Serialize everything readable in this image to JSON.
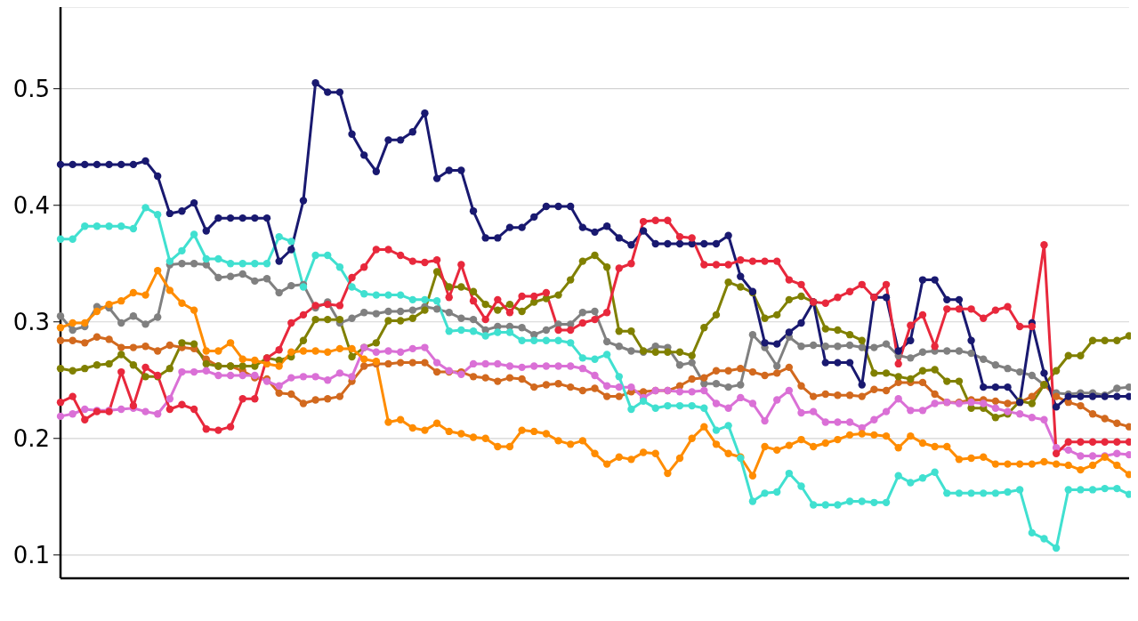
{
  "chart_data": {
    "type": "line",
    "marker": "circle",
    "line_style": "solid",
    "grid": "y",
    "legend": false,
    "categories": [
      null,
      null,
      null,
      null,
      null,
      null,
      null,
      null,
      null,
      null,
      null,
      null,
      null,
      null,
      null,
      null,
      null,
      null,
      null,
      null,
      null,
      null,
      null,
      null,
      null,
      null,
      null,
      null,
      null,
      null,
      null,
      null,
      null,
      null,
      null,
      null,
      null,
      null,
      null,
      null,
      null,
      null,
      null,
      null,
      null,
      null,
      null,
      null,
      null,
      null,
      null,
      null,
      null,
      null,
      null,
      null,
      null,
      null,
      null,
      null,
      null,
      null,
      null,
      null,
      null,
      null,
      null,
      null,
      null,
      null,
      null,
      null,
      null,
      null,
      null,
      null,
      null,
      null,
      null,
      null,
      null,
      null,
      null,
      null,
      null,
      null,
      null,
      null,
      null
    ],
    "ylim": [
      0.08,
      0.57
    ],
    "yticks": [
      0.1,
      0.2,
      0.3,
      0.4,
      0.5
    ],
    "series": [
      {
        "color": "#808080",
        "values": [
          0.305,
          0.293,
          0.296,
          0.313,
          0.312,
          0.299,
          0.305,
          0.298,
          0.304,
          0.349,
          0.35,
          0.35,
          0.349,
          0.338,
          0.339,
          0.341,
          0.335,
          0.337,
          0.325,
          0.331,
          0.332,
          0.312,
          0.317,
          0.299,
          0.303,
          0.308,
          0.307,
          0.309,
          0.309,
          0.31,
          0.313,
          0.311,
          0.308,
          0.303,
          0.302,
          0.293,
          0.296,
          0.296,
          0.295,
          0.289,
          0.293,
          0.298,
          0.298,
          0.308,
          0.309,
          0.283,
          0.279,
          0.275,
          0.274,
          0.279,
          0.278,
          0.263,
          0.265,
          0.247,
          0.247,
          0.244,
          0.246,
          0.289,
          0.278,
          0.262,
          0.287,
          0.279,
          0.28,
          0.279,
          0.279,
          0.28,
          0.278,
          0.278,
          0.281,
          0.271,
          0.269,
          0.274,
          0.275,
          0.275,
          0.275,
          0.273,
          0.268,
          0.263,
          0.26,
          0.257,
          0.254,
          0.246,
          0.239,
          0.238,
          0.239,
          0.239,
          0.237,
          0.243,
          0.244
        ]
      },
      {
        "color": "#d2691e",
        "values": [
          0.284,
          0.284,
          0.282,
          0.287,
          0.285,
          0.278,
          0.278,
          0.279,
          0.275,
          0.28,
          0.278,
          0.277,
          0.268,
          0.262,
          0.262,
          0.258,
          0.252,
          0.251,
          0.239,
          0.238,
          0.23,
          0.233,
          0.234,
          0.236,
          0.249,
          0.262,
          0.264,
          0.264,
          0.265,
          0.265,
          0.265,
          0.257,
          0.257,
          0.257,
          0.253,
          0.252,
          0.249,
          0.252,
          0.251,
          0.244,
          0.246,
          0.247,
          0.244,
          0.241,
          0.243,
          0.236,
          0.236,
          0.24,
          0.24,
          0.241,
          0.241,
          0.245,
          0.251,
          0.252,
          0.258,
          0.258,
          0.26,
          0.257,
          0.254,
          0.256,
          0.261,
          0.245,
          0.236,
          0.238,
          0.237,
          0.237,
          0.236,
          0.242,
          0.241,
          0.248,
          0.248,
          0.248,
          0.238,
          0.231,
          0.231,
          0.233,
          0.233,
          0.232,
          0.23,
          0.231,
          0.236,
          0.246,
          0.236,
          0.231,
          0.228,
          0.221,
          0.217,
          0.213,
          0.21
        ]
      },
      {
        "color": "#808000",
        "values": [
          0.26,
          0.258,
          0.26,
          0.263,
          0.264,
          0.272,
          0.263,
          0.253,
          0.253,
          0.26,
          0.282,
          0.281,
          0.264,
          0.262,
          0.262,
          0.262,
          0.262,
          0.269,
          0.267,
          0.27,
          0.284,
          0.302,
          0.302,
          0.302,
          0.27,
          0.278,
          0.282,
          0.301,
          0.301,
          0.303,
          0.31,
          0.343,
          0.33,
          0.33,
          0.326,
          0.315,
          0.31,
          0.315,
          0.309,
          0.317,
          0.32,
          0.323,
          0.336,
          0.352,
          0.357,
          0.347,
          0.292,
          0.292,
          0.275,
          0.274,
          0.274,
          0.274,
          0.271,
          0.295,
          0.306,
          0.334,
          0.33,
          0.325,
          0.303,
          0.306,
          0.319,
          0.322,
          0.317,
          0.294,
          0.293,
          0.289,
          0.284,
          0.256,
          0.256,
          0.253,
          0.251,
          0.258,
          0.259,
          0.249,
          0.249,
          0.226,
          0.226,
          0.218,
          0.221,
          0.232,
          0.23,
          0.246,
          0.258,
          0.271,
          0.271,
          0.284,
          0.284,
          0.284,
          0.288
        ]
      },
      {
        "color": "#da70d6",
        "values": [
          0.219,
          0.221,
          0.225,
          0.224,
          0.224,
          0.225,
          0.226,
          0.223,
          0.221,
          0.234,
          0.257,
          0.257,
          0.258,
          0.254,
          0.254,
          0.254,
          0.254,
          0.249,
          0.245,
          0.252,
          0.253,
          0.253,
          0.25,
          0.256,
          0.253,
          0.278,
          0.274,
          0.275,
          0.274,
          0.277,
          0.278,
          0.265,
          0.258,
          0.255,
          0.264,
          0.264,
          0.264,
          0.262,
          0.261,
          0.262,
          0.262,
          0.262,
          0.262,
          0.26,
          0.254,
          0.245,
          0.244,
          0.244,
          0.235,
          0.241,
          0.241,
          0.24,
          0.24,
          0.241,
          0.23,
          0.226,
          0.235,
          0.23,
          0.215,
          0.233,
          0.241,
          0.222,
          0.223,
          0.214,
          0.214,
          0.214,
          0.209,
          0.216,
          0.223,
          0.234,
          0.224,
          0.224,
          0.23,
          0.231,
          0.23,
          0.231,
          0.23,
          0.226,
          0.223,
          0.221,
          0.218,
          0.216,
          0.192,
          0.19,
          0.185,
          0.185,
          0.185,
          0.187,
          0.186
        ]
      },
      {
        "color": "#ff8c00",
        "values": [
          0.295,
          0.299,
          0.299,
          0.309,
          0.315,
          0.318,
          0.325,
          0.323,
          0.344,
          0.327,
          0.316,
          0.31,
          0.275,
          0.275,
          0.282,
          0.268,
          0.267,
          0.264,
          0.262,
          0.274,
          0.275,
          0.275,
          0.274,
          0.277,
          0.277,
          0.268,
          0.266,
          0.214,
          0.216,
          0.209,
          0.207,
          0.213,
          0.206,
          0.204,
          0.201,
          0.2,
          0.193,
          0.193,
          0.207,
          0.206,
          0.204,
          0.198,
          0.195,
          0.198,
          0.187,
          0.178,
          0.184,
          0.182,
          0.188,
          0.187,
          0.17,
          0.183,
          0.2,
          0.21,
          0.195,
          0.187,
          0.184,
          0.168,
          0.193,
          0.19,
          0.194,
          0.199,
          0.193,
          0.196,
          0.199,
          0.203,
          0.204,
          0.203,
          0.202,
          0.192,
          0.202,
          0.196,
          0.193,
          0.193,
          0.182,
          0.183,
          0.184,
          0.178,
          0.178,
          0.178,
          0.178,
          0.18,
          0.178,
          0.177,
          0.173,
          0.177,
          0.184,
          0.177,
          0.169
        ]
      },
      {
        "color": "#40e0d0",
        "values": [
          0.371,
          0.371,
          0.382,
          0.382,
          0.382,
          0.382,
          0.38,
          0.398,
          0.392,
          0.352,
          0.361,
          0.375,
          0.354,
          0.354,
          0.35,
          0.35,
          0.35,
          0.35,
          0.373,
          0.369,
          0.33,
          0.357,
          0.357,
          0.347,
          0.33,
          0.324,
          0.323,
          0.323,
          0.323,
          0.319,
          0.319,
          0.318,
          0.292,
          0.293,
          0.292,
          0.288,
          0.291,
          0.291,
          0.284,
          0.284,
          0.284,
          0.284,
          0.282,
          0.269,
          0.268,
          0.272,
          0.253,
          0.225,
          0.232,
          0.226,
          0.228,
          0.228,
          0.228,
          0.226,
          0.207,
          0.211,
          0.183,
          0.146,
          0.153,
          0.154,
          0.17,
          0.159,
          0.143,
          0.143,
          0.143,
          0.146,
          0.146,
          0.145,
          0.145,
          0.168,
          0.162,
          0.166,
          0.171,
          0.153,
          0.153,
          0.153,
          0.153,
          0.153,
          0.154,
          0.156,
          0.119,
          0.114,
          0.106,
          0.156,
          0.156,
          0.156,
          0.157,
          0.157,
          0.152
        ]
      },
      {
        "color": "#191970",
        "values": [
          0.435,
          0.435,
          0.435,
          0.435,
          0.435,
          0.435,
          0.435,
          0.438,
          0.425,
          0.393,
          0.395,
          0.402,
          0.378,
          0.389,
          0.389,
          0.389,
          0.389,
          0.389,
          0.352,
          0.362,
          0.404,
          0.505,
          0.497,
          0.497,
          0.461,
          0.443,
          0.429,
          0.456,
          0.456,
          0.463,
          0.479,
          0.423,
          0.43,
          0.43,
          0.395,
          0.372,
          0.372,
          0.381,
          0.381,
          0.39,
          0.399,
          0.399,
          0.399,
          0.381,
          0.377,
          0.382,
          0.372,
          0.366,
          0.378,
          0.367,
          0.367,
          0.367,
          0.367,
          0.367,
          0.367,
          0.374,
          0.339,
          0.326,
          0.282,
          0.281,
          0.291,
          0.299,
          0.317,
          0.265,
          0.265,
          0.265,
          0.246,
          0.321,
          0.321,
          0.275,
          0.284,
          0.336,
          0.336,
          0.319,
          0.319,
          0.284,
          0.244,
          0.244,
          0.244,
          0.231,
          0.299,
          0.256,
          0.227,
          0.236,
          0.236,
          0.236,
          0.236,
          0.236,
          0.236
        ]
      },
      {
        "color": "#e8283c",
        "values": [
          0.231,
          0.236,
          0.216,
          0.223,
          0.223,
          0.257,
          0.228,
          0.261,
          0.254,
          0.225,
          0.229,
          0.225,
          0.208,
          0.207,
          0.21,
          0.234,
          0.234,
          0.269,
          0.276,
          0.299,
          0.306,
          0.314,
          0.315,
          0.314,
          0.338,
          0.347,
          0.362,
          0.362,
          0.357,
          0.352,
          0.351,
          0.353,
          0.321,
          0.349,
          0.318,
          0.302,
          0.319,
          0.308,
          0.322,
          0.322,
          0.325,
          0.293,
          0.293,
          0.299,
          0.302,
          0.308,
          0.346,
          0.35,
          0.386,
          0.387,
          0.387,
          0.373,
          0.372,
          0.349,
          0.349,
          0.349,
          0.353,
          0.352,
          0.352,
          0.352,
          0.336,
          0.332,
          0.317,
          0.316,
          0.321,
          0.326,
          0.332,
          0.321,
          0.332,
          0.264,
          0.297,
          0.306,
          0.279,
          0.311,
          0.311,
          0.311,
          0.303,
          0.31,
          0.313,
          0.296,
          0.296,
          0.366,
          0.187,
          0.197,
          0.197,
          0.197,
          0.197,
          0.197,
          0.197
        ]
      }
    ]
  }
}
